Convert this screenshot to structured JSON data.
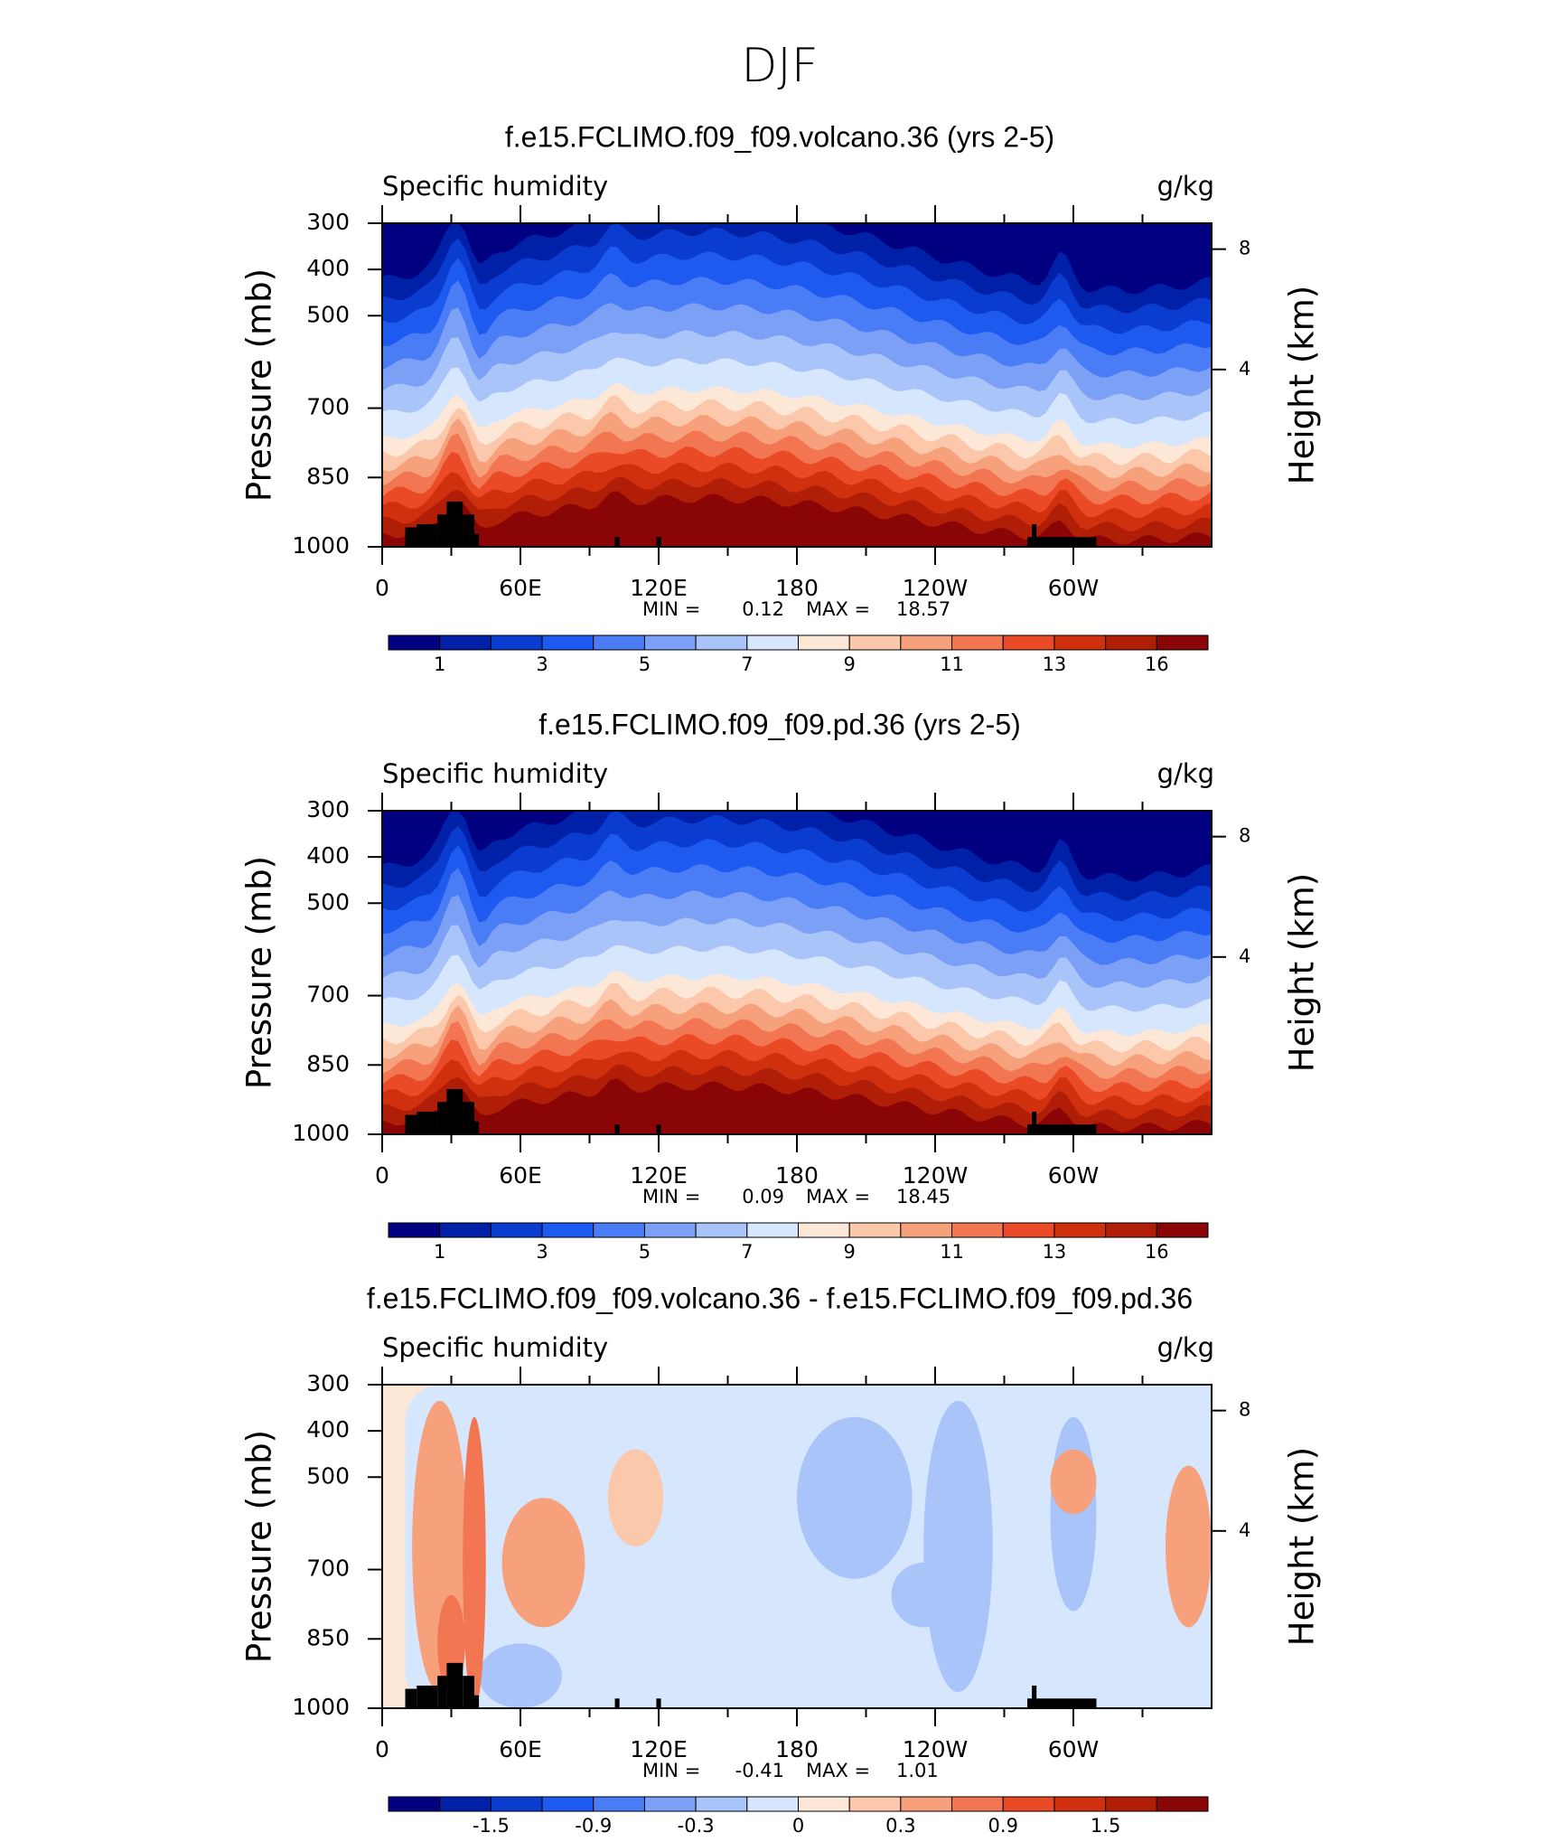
{
  "suptitle": "DJF",
  "chart_data": [
    {
      "type": "contour",
      "title": "f.e15.FCLIMO.f09_f09.volcano.36 (yrs 2-5)",
      "left_label": "Specific humidity",
      "right_label": "g/kg",
      "ylabel": "Pressure (mb)",
      "y2label": "Height (km)",
      "ylim": [
        1000,
        300
      ],
      "yticks": [
        300,
        400,
        500,
        700,
        850,
        1000
      ],
      "y2ticks": [
        8,
        4
      ],
      "xlim": [
        0,
        360
      ],
      "xticks": [
        0,
        {
          "value": 60,
          "label": "60E"
        },
        {
          "value": 120,
          "label": "120E"
        },
        180,
        {
          "value": 240,
          "label": "120W"
        },
        {
          "value": 300,
          "label": "60W"
        }
      ],
      "min_label": "MIN =",
      "min": 0.12,
      "max_label": "MAX =",
      "max": 18.57,
      "colorbar": {
        "colors": [
          "#000080",
          "#0020a8",
          "#0a3ccf",
          "#1e5af0",
          "#4a7cf5",
          "#7ba0f6",
          "#a8c4f8",
          "#d6e6fc",
          "#fde8d8",
          "#fbc8ab",
          "#f7a07c",
          "#f27652",
          "#ea4a25",
          "#d0300e",
          "#b01e08",
          "#8a0505"
        ],
        "labels": [
          1,
          3,
          5,
          7,
          9,
          11,
          13,
          16
        ]
      }
    },
    {
      "type": "contour",
      "title": "f.e15.FCLIMO.f09_f09.pd.36 (yrs 2-5)",
      "left_label": "Specific humidity",
      "right_label": "g/kg",
      "ylabel": "Pressure (mb)",
      "y2label": "Height (km)",
      "ylim": [
        1000,
        300
      ],
      "yticks": [
        300,
        400,
        500,
        700,
        850,
        1000
      ],
      "y2ticks": [
        8,
        4
      ],
      "xlim": [
        0,
        360
      ],
      "xticks": [
        0,
        {
          "value": 60,
          "label": "60E"
        },
        {
          "value": 120,
          "label": "120E"
        },
        180,
        {
          "value": 240,
          "label": "120W"
        },
        {
          "value": 300,
          "label": "60W"
        }
      ],
      "min_label": "MIN =",
      "min": 0.09,
      "max_label": "MAX =",
      "max": 18.45,
      "colorbar": {
        "colors": [
          "#000080",
          "#0020a8",
          "#0a3ccf",
          "#1e5af0",
          "#4a7cf5",
          "#7ba0f6",
          "#a8c4f8",
          "#d6e6fc",
          "#fde8d8",
          "#fbc8ab",
          "#f7a07c",
          "#f27652",
          "#ea4a25",
          "#d0300e",
          "#b01e08",
          "#8a0505"
        ],
        "labels": [
          1,
          3,
          5,
          7,
          9,
          11,
          13,
          16
        ]
      }
    },
    {
      "type": "contour-diff",
      "title": "f.e15.FCLIMO.f09_f09.volcano.36 - f.e15.FCLIMO.f09_f09.pd.36",
      "left_label": "Specific humidity",
      "right_label": "g/kg",
      "ylabel": "Pressure (mb)",
      "y2label": "Height (km)",
      "ylim": [
        1000,
        300
      ],
      "yticks": [
        300,
        400,
        500,
        700,
        850,
        1000
      ],
      "y2ticks": [
        8,
        4
      ],
      "xlim": [
        0,
        360
      ],
      "xticks": [
        0,
        {
          "value": 60,
          "label": "60E"
        },
        {
          "value": 120,
          "label": "120E"
        },
        180,
        {
          "value": 240,
          "label": "120W"
        },
        {
          "value": 300,
          "label": "60W"
        }
      ],
      "min_label": "MIN =",
      "min": -0.41,
      "max_label": "MAX =",
      "max": 1.01,
      "colorbar": {
        "colors": [
          "#000080",
          "#0020a8",
          "#0a3ccf",
          "#1e5af0",
          "#4a7cf5",
          "#7ba0f6",
          "#a8c4f8",
          "#d6e6fc",
          "#fde8d8",
          "#fbc8ab",
          "#f7a07c",
          "#f27652",
          "#ea4a25",
          "#d0300e",
          "#b01e08",
          "#8a0505"
        ],
        "labels": [
          -1.5,
          -0.9,
          -0.3,
          0,
          0.3,
          0.9,
          1.5
        ]
      }
    }
  ]
}
